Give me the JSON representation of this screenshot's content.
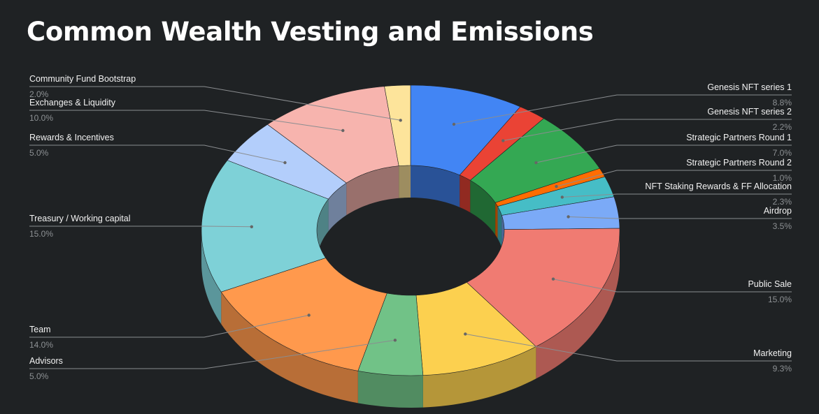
{
  "chart_data": {
    "type": "pie",
    "title": "Common Wealth Vesting and Emissions",
    "slices": [
      {
        "label": "Genesis NFT series 1",
        "value": 8.8,
        "pct": "8.8%",
        "color": "#4285f4"
      },
      {
        "label": "Genesis NFT series 2",
        "value": 2.2,
        "pct": "2.2%",
        "color": "#ea4335"
      },
      {
        "label": "Strategic Partners Round 1",
        "value": 7.0,
        "pct": "7.0%",
        "color": "#34a853"
      },
      {
        "label": "Strategic Partners Round 2",
        "value": 1.0,
        "pct": "1.0%",
        "color": "#ff6d01"
      },
      {
        "label": "NFT Staking Rewards & FF Allocation",
        "value": 2.3,
        "pct": "2.3%",
        "color": "#46bdc6"
      },
      {
        "label": "Airdrop",
        "value": 3.5,
        "pct": "3.5%",
        "color": "#7baaf7"
      },
      {
        "label": "Public Sale",
        "value": 15.0,
        "pct": "15.0%",
        "color": "#f07b72"
      },
      {
        "label": "Marketing",
        "value": 9.3,
        "pct": "9.3%",
        "color": "#fcd04f"
      },
      {
        "label": "Advisors",
        "value": 5.0,
        "pct": "5.0%",
        "color": "#71c287"
      },
      {
        "label": "Team",
        "value": 14.0,
        "pct": "14.0%",
        "color": "#ff994d"
      },
      {
        "label": "Treasury / Working capital",
        "value": 15.0,
        "pct": "15.0%",
        "color": "#7ed1d7"
      },
      {
        "label": "Rewards & Incentives",
        "value": 5.0,
        "pct": "5.0%",
        "color": "#b3cefb"
      },
      {
        "label": "Exchanges & Liquidity",
        "value": 10.0,
        "pct": "10.0%",
        "color": "#f7b4ae"
      },
      {
        "label": "Community Fund Bootstrap",
        "value": 2.0,
        "pct": "2.0%",
        "color": "#fde49b"
      }
    ],
    "style": "3d-donut",
    "legend": "labels with leader lines"
  }
}
